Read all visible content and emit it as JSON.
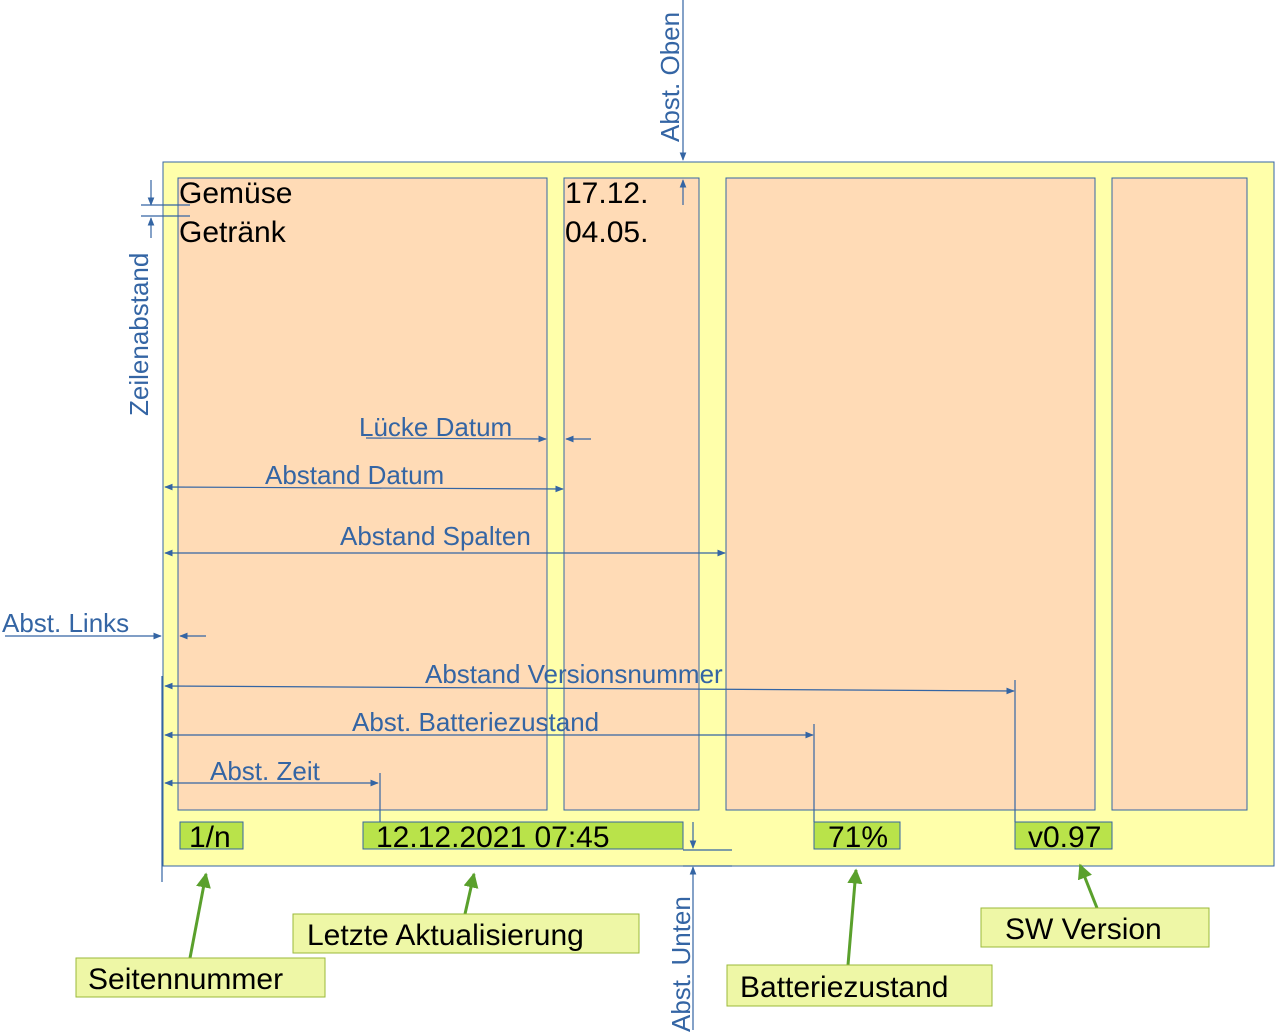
{
  "screen": {
    "rows": [
      {
        "label": "Gemüse",
        "date": "17.12."
      },
      {
        "label": "Getränk",
        "date": "04.05."
      }
    ],
    "status": {
      "page": "1/n",
      "updated": "12.12.2021 07:45",
      "battery": "71%",
      "version": "v0.97"
    }
  },
  "dimensions": {
    "top": "Abst. Oben",
    "line_spacing": "Zeilenabstand",
    "date_gap": "Lücke Datum",
    "date_distance": "Abstand Datum",
    "column_distance": "Abstand Spalten",
    "left": "Abst. Links",
    "version_distance": "Abstand Versionsnummer",
    "battery_distance": "Abst. Batteriezustand",
    "time_distance": "Abst. Zeit",
    "bottom": "Abst. Unten"
  },
  "callouts": {
    "page_number": "Seitennummer",
    "last_update": "Letzte Aktualisierung",
    "battery": "Batteriezustand",
    "sw_version": "SW Version"
  },
  "colors": {
    "screen": "#ffffaa",
    "column": "#ffdbb6",
    "status": "#b9e34a",
    "callout": "#eef7a6",
    "dimension": "#3465a4",
    "leader": "#5aa02c"
  }
}
